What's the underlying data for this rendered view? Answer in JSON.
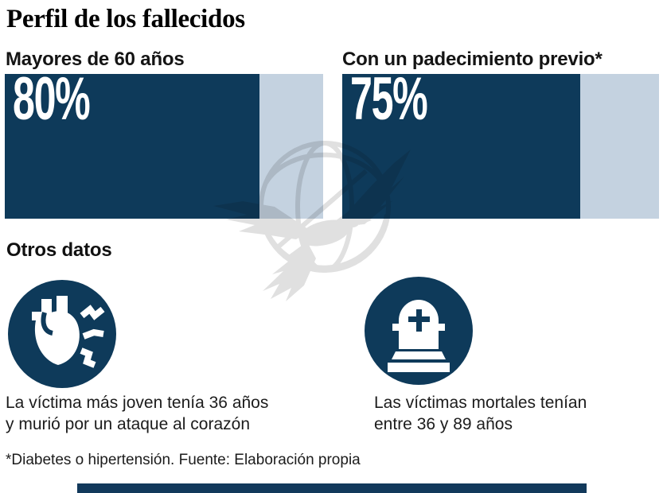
{
  "title": "Perfil de los fallecidos",
  "colors": {
    "navy": "#0E3A5A",
    "bar_remainder_blue": "#C4D2E0",
    "text_dark": "#1C1C1C",
    "value_text": "#FFFFFF",
    "watermark_gray": "#E0E0E0",
    "bottom_bar_navy": "#12395B"
  },
  "chart_data": [
    {
      "type": "bar",
      "title": "Mayores de 60 años",
      "categories": [
        "Mayores de 60 años"
      ],
      "values": [
        80
      ],
      "value_label": "80%",
      "unit": "%",
      "xlim": [
        0,
        100
      ],
      "orientation": "horizontal",
      "bar_color": "#0E3A5A",
      "track_color": "#C4D2E0",
      "label_position": "inside-left"
    },
    {
      "type": "bar",
      "title": "Con un padecimiento previo*",
      "categories": [
        "Con un padecimiento previo*"
      ],
      "values": [
        75
      ],
      "value_label": "75%",
      "unit": "%",
      "xlim": [
        0,
        100
      ],
      "orientation": "horizontal",
      "bar_color": "#0E3A5A",
      "track_color": "#C4D2E0",
      "label_position": "inside-left"
    }
  ],
  "other_data": {
    "heading": "Otros datos",
    "facts": [
      {
        "icon": "heart-attack-icon",
        "lines": [
          "La víctima más joven tenía 36 años",
          "y murió por un ataque al corazón"
        ]
      },
      {
        "icon": "tombstone-icon",
        "lines": [
          "Las víctimas mortales tenían",
          "entre 36 y 89 años"
        ]
      }
    ]
  },
  "footnote": "*Diabetes o hipertensión. Fuente: Elaboración propia",
  "watermark": "el-universal-eagle-globe-watermark"
}
